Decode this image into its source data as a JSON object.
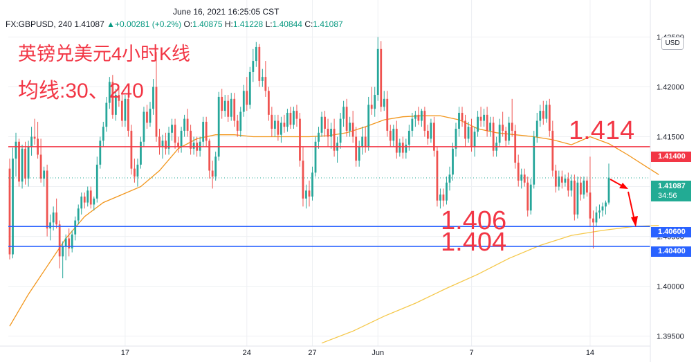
{
  "header": {
    "timestamp": "June 16, 2021 16:25:05 CST",
    "symbol": "FX:GBPUSD, 240",
    "last": "1.41087",
    "change_icon": "triangle-up-icon",
    "change": "+0.00281 (+0.2%)",
    "o_label": "O:",
    "o_value": "1.40875",
    "h_label": "H:",
    "h_value": "1.41228",
    "l_label": "L:",
    "l_value": "1.40844",
    "c_label": "C:",
    "c_value": "1.41087"
  },
  "annotations": {
    "title": "英镑兑美元4小时K线",
    "ma_note": "均线:30、240",
    "level_1414": "1.414",
    "level_1406": "1.406",
    "level_1404": "1.404"
  },
  "axis": {
    "currency": "USD",
    "price_tags": {
      "red": "1.41400",
      "blue_upper": "1.40600",
      "blue_lower": "1.40400",
      "current": "1.41087",
      "countdown": "34:56"
    }
  },
  "colors": {
    "up": "#26a69a",
    "down": "#ef5350",
    "ma30": "#f2951a",
    "ma240": "#f5c84a",
    "resistance": "#f23645",
    "support": "#2962ff",
    "arrow": "#ff0000"
  },
  "chart_data": {
    "type": "candlestick",
    "symbol": "FX:GBPUSD",
    "interval": "240",
    "ylim": [
      1.394,
      1.4258
    ],
    "y_ticks": [
      1.395,
      1.4,
      1.405,
      1.41,
      1.415,
      1.42,
      1.425
    ],
    "y_tick_labels": [
      "1.39500",
      "1.40000",
      "1.40500",
      "1.41000",
      "1.41500",
      "1.42000",
      "1.42500"
    ],
    "x_tick_labels": [
      "17",
      "24",
      "27",
      "Jun",
      "7",
      "14"
    ],
    "x_tick_index": [
      37,
      76,
      97,
      118,
      148,
      186
    ],
    "candles": [
      [
        1.4118,
        1.4128,
        1.4027,
        1.4032
      ],
      [
        1.4032,
        1.4139,
        1.4028,
        1.4128
      ],
      [
        1.4128,
        1.4154,
        1.411,
        1.4145
      ],
      [
        1.4145,
        1.4148,
        1.41,
        1.4105
      ],
      [
        1.4105,
        1.4142,
        1.4098,
        1.4138
      ],
      [
        1.4138,
        1.4145,
        1.4102,
        1.4108
      ],
      [
        1.4108,
        1.4146,
        1.41,
        1.414
      ],
      [
        1.414,
        1.416,
        1.4131,
        1.415
      ],
      [
        1.415,
        1.4168,
        1.4142,
        1.4148
      ],
      [
        1.4148,
        1.4165,
        1.4128,
        1.4132
      ],
      [
        1.4132,
        1.4148,
        1.4104,
        1.4108
      ],
      [
        1.4108,
        1.412,
        1.41,
        1.4116
      ],
      [
        1.4116,
        1.4122,
        1.405,
        1.4058
      ],
      [
        1.4058,
        1.4072,
        1.4046,
        1.4064
      ],
      [
        1.4064,
        1.408,
        1.4056,
        1.4074
      ],
      [
        1.4074,
        1.4088,
        1.4058,
        1.4062
      ],
      [
        1.4062,
        1.4066,
        1.4018,
        1.403
      ],
      [
        1.403,
        1.4045,
        1.4008,
        1.404
      ],
      [
        1.404,
        1.4052,
        1.4026,
        1.4048
      ],
      [
        1.4048,
        1.4058,
        1.403,
        1.4038
      ],
      [
        1.4038,
        1.4056,
        1.4034,
        1.4052
      ],
      [
        1.4052,
        1.407,
        1.4046,
        1.4066
      ],
      [
        1.4066,
        1.4082,
        1.4062,
        1.4078
      ],
      [
        1.4078,
        1.4094,
        1.4072,
        1.409
      ],
      [
        1.409,
        1.4094,
        1.4078,
        1.4084
      ],
      [
        1.4084,
        1.41,
        1.408,
        1.4096
      ],
      [
        1.4096,
        1.41,
        1.4078,
        1.4082
      ],
      [
        1.4082,
        1.409,
        1.4076,
        1.4088
      ],
      [
        1.4088,
        1.413,
        1.4084,
        1.4122
      ],
      [
        1.4122,
        1.415,
        1.4118,
        1.4146
      ],
      [
        1.4146,
        1.4165,
        1.414,
        1.416
      ],
      [
        1.416,
        1.419,
        1.4155,
        1.4184
      ],
      [
        1.4184,
        1.421,
        1.4178,
        1.4205
      ],
      [
        1.4205,
        1.4212,
        1.4168,
        1.4172
      ],
      [
        1.4172,
        1.4198,
        1.4166,
        1.4192
      ],
      [
        1.4192,
        1.42,
        1.418,
        1.4186
      ],
      [
        1.4186,
        1.4194,
        1.416,
        1.4166
      ],
      [
        1.4166,
        1.4192,
        1.416,
        1.4188
      ],
      [
        1.4188,
        1.4192,
        1.415,
        1.4156
      ],
      [
        1.4156,
        1.4162,
        1.4112,
        1.4118
      ],
      [
        1.4118,
        1.4128,
        1.4104,
        1.411
      ],
      [
        1.411,
        1.4128,
        1.41,
        1.4122
      ],
      [
        1.4122,
        1.415,
        1.4118,
        1.4145
      ],
      [
        1.4145,
        1.418,
        1.414,
        1.4175
      ],
      [
        1.4175,
        1.4182,
        1.4158,
        1.4164
      ],
      [
        1.4164,
        1.4185,
        1.416,
        1.4178
      ],
      [
        1.4178,
        1.4208,
        1.4172,
        1.42
      ],
      [
        1.42,
        1.4235,
        1.4145,
        1.415
      ],
      [
        1.415,
        1.4158,
        1.4132,
        1.414
      ],
      [
        1.414,
        1.4152,
        1.4128,
        1.4146
      ],
      [
        1.4146,
        1.4154,
        1.4132,
        1.4138
      ],
      [
        1.4138,
        1.416,
        1.4132,
        1.4154
      ],
      [
        1.4154,
        1.4168,
        1.4146,
        1.4162
      ],
      [
        1.4162,
        1.4168,
        1.4138,
        1.4144
      ],
      [
        1.4144,
        1.415,
        1.4134,
        1.414
      ],
      [
        1.414,
        1.416,
        1.4134,
        1.4156
      ],
      [
        1.4156,
        1.4172,
        1.415,
        1.4168
      ],
      [
        1.4168,
        1.4178,
        1.415,
        1.4156
      ],
      [
        1.4156,
        1.4162,
        1.4132,
        1.4138
      ],
      [
        1.4138,
        1.415,
        1.4132,
        1.4144
      ],
      [
        1.4144,
        1.415,
        1.413,
        1.4136
      ],
      [
        1.4136,
        1.415,
        1.413,
        1.4145
      ],
      [
        1.4145,
        1.417,
        1.414,
        1.4165
      ],
      [
        1.4165,
        1.417,
        1.414,
        1.4146
      ],
      [
        1.4146,
        1.4148,
        1.4108,
        1.4116
      ],
      [
        1.4116,
        1.4126,
        1.4098,
        1.411
      ],
      [
        1.411,
        1.4135,
        1.4106,
        1.413
      ],
      [
        1.413,
        1.4195,
        1.4126,
        1.419
      ],
      [
        1.419,
        1.4198,
        1.4168,
        1.4176
      ],
      [
        1.4176,
        1.4192,
        1.417,
        1.4186
      ],
      [
        1.4186,
        1.4192,
        1.4165,
        1.417
      ],
      [
        1.417,
        1.4194,
        1.4166,
        1.4188
      ],
      [
        1.4188,
        1.4194,
        1.416,
        1.4166
      ],
      [
        1.4166,
        1.4172,
        1.415,
        1.4156
      ],
      [
        1.4156,
        1.418,
        1.415,
        1.4175
      ],
      [
        1.4175,
        1.4202,
        1.417,
        1.4196
      ],
      [
        1.4196,
        1.421,
        1.4176,
        1.4182
      ],
      [
        1.4182,
        1.422,
        1.4178,
        1.4215
      ],
      [
        1.4215,
        1.4238,
        1.4205,
        1.4226
      ],
      [
        1.4226,
        1.4245,
        1.422,
        1.424
      ],
      [
        1.424,
        1.4243,
        1.42,
        1.4206
      ],
      [
        1.4206,
        1.4218,
        1.42,
        1.421
      ],
      [
        1.421,
        1.4226,
        1.419,
        1.4196
      ],
      [
        1.4196,
        1.42,
        1.4166,
        1.4172
      ],
      [
        1.4172,
        1.418,
        1.415,
        1.4158
      ],
      [
        1.4158,
        1.4172,
        1.415,
        1.4166
      ],
      [
        1.4166,
        1.4172,
        1.4146,
        1.4152
      ],
      [
        1.4152,
        1.417,
        1.4144,
        1.4164
      ],
      [
        1.4164,
        1.4172,
        1.4154,
        1.416
      ],
      [
        1.416,
        1.4178,
        1.4155,
        1.4174
      ],
      [
        1.4174,
        1.418,
        1.4158,
        1.4162
      ],
      [
        1.4162,
        1.418,
        1.4158,
        1.4176
      ],
      [
        1.4176,
        1.4182,
        1.416,
        1.4168
      ],
      [
        1.4168,
        1.4174,
        1.412,
        1.4126
      ],
      [
        1.4126,
        1.414,
        1.408,
        1.4088
      ],
      [
        1.4088,
        1.4102,
        1.4078,
        1.4096
      ],
      [
        1.4096,
        1.4106,
        1.408,
        1.409
      ],
      [
        1.409,
        1.412,
        1.4086,
        1.4114
      ],
      [
        1.4114,
        1.415,
        1.411,
        1.4145
      ],
      [
        1.4145,
        1.416,
        1.4138,
        1.4154
      ],
      [
        1.4154,
        1.4175,
        1.415,
        1.417
      ],
      [
        1.417,
        1.4176,
        1.415,
        1.4158
      ],
      [
        1.4158,
        1.4168,
        1.414,
        1.415
      ],
      [
        1.415,
        1.4164,
        1.4138,
        1.4158
      ],
      [
        1.4158,
        1.4168,
        1.413,
        1.4136
      ],
      [
        1.4136,
        1.415,
        1.4124,
        1.4144
      ],
      [
        1.4144,
        1.4174,
        1.4138,
        1.4168
      ],
      [
        1.4168,
        1.4186,
        1.416,
        1.418
      ],
      [
        1.418,
        1.4188,
        1.415,
        1.4156
      ],
      [
        1.4156,
        1.417,
        1.415,
        1.4164
      ],
      [
        1.4164,
        1.4176,
        1.4144,
        1.415
      ],
      [
        1.415,
        1.416,
        1.412,
        1.4126
      ],
      [
        1.4126,
        1.4146,
        1.412,
        1.414
      ],
      [
        1.414,
        1.416,
        1.4132,
        1.415
      ],
      [
        1.415,
        1.416,
        1.4134,
        1.414
      ],
      [
        1.414,
        1.419,
        1.4136,
        1.4182
      ],
      [
        1.4182,
        1.42,
        1.4172,
        1.4178
      ],
      [
        1.4178,
        1.42,
        1.417,
        1.4192
      ],
      [
        1.4192,
        1.425,
        1.4186,
        1.4238
      ],
      [
        1.4238,
        1.4246,
        1.4175,
        1.418
      ],
      [
        1.418,
        1.4196,
        1.4176,
        1.4188
      ],
      [
        1.4188,
        1.4196,
        1.415,
        1.4156
      ],
      [
        1.4156,
        1.4162,
        1.414,
        1.4146
      ],
      [
        1.4146,
        1.4162,
        1.414,
        1.4158
      ],
      [
        1.4158,
        1.4166,
        1.4128,
        1.4134
      ],
      [
        1.4134,
        1.4148,
        1.413,
        1.4144
      ],
      [
        1.4144,
        1.415,
        1.4128,
        1.4134
      ],
      [
        1.4134,
        1.4148,
        1.4128,
        1.4142
      ],
      [
        1.4142,
        1.4162,
        1.4136,
        1.4156
      ],
      [
        1.4156,
        1.4174,
        1.415,
        1.4168
      ],
      [
        1.4168,
        1.4176,
        1.416,
        1.4172
      ],
      [
        1.4172,
        1.418,
        1.4162,
        1.4166
      ],
      [
        1.4166,
        1.4178,
        1.416,
        1.4176
      ],
      [
        1.4176,
        1.418,
        1.415,
        1.4156
      ],
      [
        1.4156,
        1.4162,
        1.4142,
        1.4148
      ],
      [
        1.4148,
        1.4168,
        1.4144,
        1.4164
      ],
      [
        1.4164,
        1.417,
        1.413,
        1.4136
      ],
      [
        1.4136,
        1.414,
        1.408,
        1.4086
      ],
      [
        1.4086,
        1.4098,
        1.4078,
        1.4092
      ],
      [
        1.4092,
        1.4098,
        1.408,
        1.4086
      ],
      [
        1.4086,
        1.411,
        1.4082,
        1.4104
      ],
      [
        1.4104,
        1.412,
        1.4096,
        1.4112
      ],
      [
        1.4112,
        1.4144,
        1.4106,
        1.4138
      ],
      [
        1.4138,
        1.4164,
        1.413,
        1.4158
      ],
      [
        1.4158,
        1.418,
        1.415,
        1.4174
      ],
      [
        1.4174,
        1.418,
        1.416,
        1.4166
      ],
      [
        1.4166,
        1.4172,
        1.414,
        1.4148
      ],
      [
        1.4148,
        1.4165,
        1.4144,
        1.416
      ],
      [
        1.416,
        1.4168,
        1.4135,
        1.414
      ],
      [
        1.414,
        1.416,
        1.413,
        1.4155
      ],
      [
        1.4155,
        1.4176,
        1.415,
        1.417
      ],
      [
        1.417,
        1.418,
        1.416,
        1.4166
      ],
      [
        1.4166,
        1.4178,
        1.416,
        1.4172
      ],
      [
        1.4172,
        1.418,
        1.415,
        1.4156
      ],
      [
        1.4156,
        1.417,
        1.415,
        1.4164
      ],
      [
        1.4164,
        1.417,
        1.413,
        1.4136
      ],
      [
        1.4136,
        1.415,
        1.413,
        1.4144
      ],
      [
        1.4144,
        1.4168,
        1.414,
        1.4162
      ],
      [
        1.4162,
        1.4175,
        1.415,
        1.4156
      ],
      [
        1.4156,
        1.416,
        1.414,
        1.4146
      ],
      [
        1.4146,
        1.417,
        1.4142,
        1.4164
      ],
      [
        1.4164,
        1.4188,
        1.415,
        1.4156
      ],
      [
        1.4156,
        1.4162,
        1.4118,
        1.4124
      ],
      [
        1.4124,
        1.4132,
        1.41,
        1.4106
      ],
      [
        1.4106,
        1.4118,
        1.4098,
        1.4112
      ],
      [
        1.4112,
        1.4118,
        1.41,
        1.4104
      ],
      [
        1.4104,
        1.411,
        1.407,
        1.4076
      ],
      [
        1.4076,
        1.4108,
        1.4072,
        1.4102
      ],
      [
        1.4102,
        1.4156,
        1.4098,
        1.415
      ],
      [
        1.415,
        1.4174,
        1.4144,
        1.4166
      ],
      [
        1.4166,
        1.4182,
        1.416,
        1.4176
      ],
      [
        1.4176,
        1.4186,
        1.4162,
        1.4168
      ],
      [
        1.4168,
        1.4186,
        1.4164,
        1.4182
      ],
      [
        1.4182,
        1.4188,
        1.415,
        1.4156
      ],
      [
        1.4156,
        1.4166,
        1.411,
        1.4116
      ],
      [
        1.4116,
        1.4122,
        1.4094,
        1.41
      ],
      [
        1.41,
        1.4116,
        1.4096,
        1.411
      ],
      [
        1.411,
        1.4116,
        1.4098,
        1.4104
      ],
      [
        1.4104,
        1.4112,
        1.41,
        1.4108
      ],
      [
        1.4108,
        1.4114,
        1.409,
        1.4096
      ],
      [
        1.4096,
        1.4112,
        1.409,
        1.4106
      ],
      [
        1.4106,
        1.4112,
        1.4066,
        1.4072
      ],
      [
        1.4072,
        1.411,
        1.4068,
        1.4104
      ],
      [
        1.4104,
        1.411,
        1.4086,
        1.4092
      ],
      [
        1.4092,
        1.411,
        1.4088,
        1.4106
      ],
      [
        1.4106,
        1.411,
        1.409,
        1.4094
      ],
      [
        1.4094,
        1.413,
        1.406,
        1.4068
      ],
      [
        1.4068,
        1.4076,
        1.4038,
        1.4064
      ],
      [
        1.4064,
        1.408,
        1.406,
        1.4074
      ],
      [
        1.4074,
        1.4082,
        1.4068,
        1.4076
      ],
      [
        1.4076,
        1.4084,
        1.407,
        1.408
      ],
      [
        1.408,
        1.4086,
        1.4072,
        1.4084
      ],
      [
        1.4084,
        1.4123,
        1.4082,
        1.4109
      ]
    ],
    "ma30": [
      [
        0,
        1.396
      ],
      [
        6,
        1.3992
      ],
      [
        12,
        1.402
      ],
      [
        18,
        1.4048
      ],
      [
        24,
        1.407
      ],
      [
        30,
        1.4084
      ],
      [
        36,
        1.4092
      ],
      [
        42,
        1.41
      ],
      [
        48,
        1.4116
      ],
      [
        54,
        1.4138
      ],
      [
        60,
        1.4148
      ],
      [
        66,
        1.4152
      ],
      [
        72,
        1.4152
      ],
      [
        78,
        1.415
      ],
      [
        84,
        1.415
      ],
      [
        90,
        1.415
      ],
      [
        96,
        1.415
      ],
      [
        102,
        1.4151
      ],
      [
        108,
        1.4154
      ],
      [
        114,
        1.416
      ],
      [
        120,
        1.4167
      ],
      [
        126,
        1.417
      ],
      [
        132,
        1.4171
      ],
      [
        138,
        1.4171
      ],
      [
        144,
        1.4167
      ],
      [
        150,
        1.4158
      ],
      [
        156,
        1.4154
      ],
      [
        162,
        1.4152
      ],
      [
        168,
        1.415
      ],
      [
        174,
        1.4147
      ],
      [
        180,
        1.4142
      ],
      [
        186,
        1.415
      ],
      [
        192,
        1.4143
      ],
      [
        198,
        1.4132
      ],
      [
        204,
        1.412
      ],
      [
        208,
        1.4112
      ]
    ],
    "ma240": [
      [
        100,
        1.3943
      ],
      [
        110,
        1.3955
      ],
      [
        120,
        1.397
      ],
      [
        130,
        1.3983
      ],
      [
        140,
        1.3998
      ],
      [
        150,
        1.4012
      ],
      [
        160,
        1.4028
      ],
      [
        170,
        1.4041
      ],
      [
        180,
        1.4051
      ],
      [
        190,
        1.4056
      ],
      [
        200,
        1.406
      ],
      [
        208,
        1.4061
      ]
    ],
    "horizontal_levels": [
      1.414,
      1.406,
      1.404
    ],
    "last_price": 1.41087
  }
}
